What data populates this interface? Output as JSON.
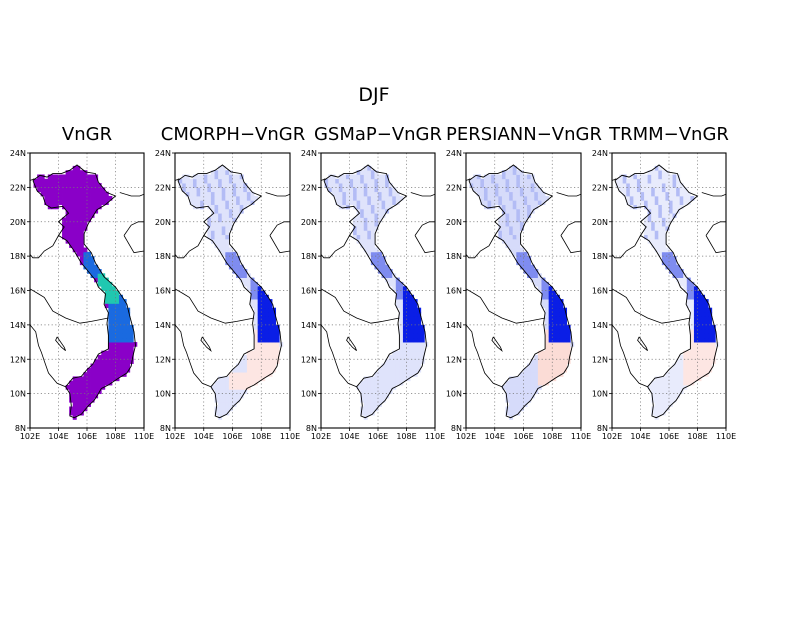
{
  "figure": {
    "title": "DJF"
  },
  "map_data": {
    "region": "Vietnam",
    "lon_range": [
      102,
      110
    ],
    "lat_range": [
      8,
      24
    ],
    "grid": "dotted",
    "lon_ticks": [
      "102E",
      "104E",
      "106E",
      "108E",
      "110E"
    ],
    "lat_ticks": [
      "8N",
      "10N",
      "12N",
      "14N",
      "16N",
      "18N",
      "20N",
      "22N",
      "24N"
    ],
    "panels": [
      {
        "title": "VnGR",
        "kind": "absolute",
        "colors": {
          "base": "#8a00c8",
          "mid": "#1a6ae0",
          "high": "#20c8b0"
        }
      },
      {
        "title": "CMORPH−VnGR",
        "kind": "difference",
        "colors": {
          "neg_light": "#dfe3fb",
          "neg_mid": "#7f8cf0",
          "neg_strong": "#0a1ee6",
          "pos_light": "#fde6e3"
        }
      },
      {
        "title": "GSMaP−VnGR",
        "kind": "difference",
        "colors": {
          "neg_light": "#dfe3fb",
          "neg_mid": "#7f8cf0",
          "neg_strong": "#0a1ee6",
          "pos_light": "#fde6e3"
        }
      },
      {
        "title": "PERSIANN−VnGR",
        "kind": "difference",
        "colors": {
          "neg_light": "#d6dbfa",
          "neg_mid": "#7f8cf0",
          "neg_strong": "#0a1ee6",
          "pos_light": "#fbdcd6"
        }
      },
      {
        "title": "TRMM−VnGR",
        "kind": "difference",
        "colors": {
          "neg_light": "#e8ebfc",
          "neg_mid": "#7f8cf0",
          "neg_strong": "#0a1ee6",
          "pos_light": "#fde6e3"
        }
      }
    ]
  }
}
